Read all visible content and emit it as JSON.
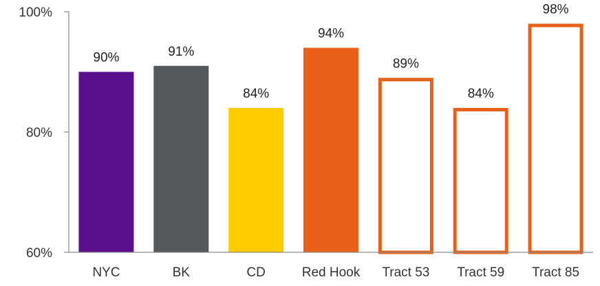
{
  "chart_data": {
    "type": "bar",
    "title": "",
    "xlabel": "",
    "ylabel": "",
    "ylim": [
      60,
      100
    ],
    "yticks": [
      60,
      80,
      100
    ],
    "ytick_labels": [
      "60%",
      "80%",
      "100%"
    ],
    "grid": false,
    "legend": "none",
    "categories": [
      "NYC",
      "BK",
      "CD",
      "Red Hook",
      "Tract 53",
      "Tract 59",
      "Tract 85"
    ],
    "values": [
      90,
      91,
      84,
      94,
      89,
      84,
      98
    ],
    "data_labels": [
      "90%",
      "91%",
      "84%",
      "94%",
      "89%",
      "84%",
      "98%"
    ],
    "bar_colors": [
      "#5a0f8c",
      "#55585b",
      "#ffcc00",
      "#e8611a",
      "#e8611a",
      "#e8611a",
      "#e8611a"
    ],
    "bar_fill": [
      "solid",
      "solid",
      "solid",
      "solid",
      "outline",
      "outline",
      "outline"
    ]
  }
}
